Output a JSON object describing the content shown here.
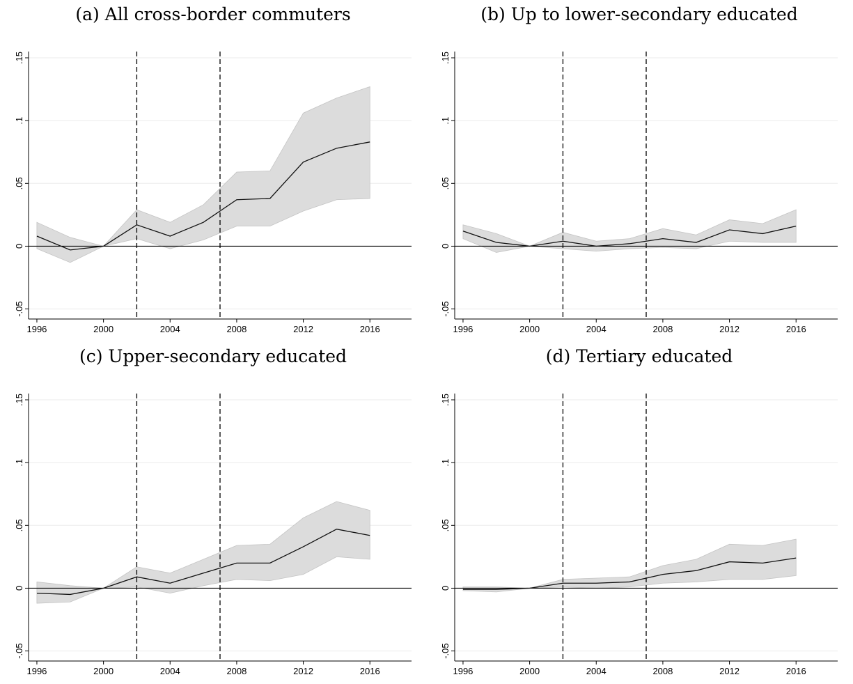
{
  "chart_data": [
    {
      "type": "line",
      "title": "(a) All cross-border commuters",
      "x": [
        1996,
        1998,
        2000,
        2002,
        2004,
        2006,
        2008,
        2010,
        2012,
        2014,
        2016
      ],
      "series": [
        {
          "values": [
            0.008,
            -0.003,
            0.0,
            0.017,
            0.008,
            0.019,
            0.037,
            0.038,
            0.067,
            0.078,
            0.083
          ]
        }
      ],
      "ci_lower": [
        -0.002,
        -0.013,
        0.0,
        0.006,
        -0.002,
        0.005,
        0.016,
        0.016,
        0.028,
        0.037,
        0.038
      ],
      "ci_upper": [
        0.019,
        0.007,
        0.0,
        0.029,
        0.019,
        0.033,
        0.059,
        0.06,
        0.106,
        0.118,
        0.127
      ],
      "vlines": [
        2002,
        2007
      ],
      "xticks": [
        "1996",
        "2000",
        "2004",
        "2008",
        "2012",
        "2016"
      ],
      "yticks": [
        "-.05",
        "0",
        ".05",
        ".1",
        ".15"
      ],
      "xlim": [
        1995.5,
        2018.5
      ],
      "ylim": [
        -0.058,
        0.155
      ],
      "grid": true
    },
    {
      "type": "line",
      "title": "(b) Up to lower-secondary educated",
      "x": [
        1996,
        1998,
        2000,
        2002,
        2004,
        2006,
        2008,
        2010,
        2012,
        2014,
        2016
      ],
      "series": [
        {
          "values": [
            0.012,
            0.003,
            0.0,
            0.004,
            0.0,
            0.002,
            0.006,
            0.003,
            0.013,
            0.01,
            0.016
          ]
        }
      ],
      "ci_lower": [
        0.006,
        -0.005,
        0.0,
        -0.002,
        -0.004,
        -0.002,
        -0.001,
        -0.002,
        0.004,
        0.003,
        0.003
      ],
      "ci_upper": [
        0.017,
        0.01,
        0.0,
        0.011,
        0.004,
        0.006,
        0.014,
        0.009,
        0.021,
        0.018,
        0.029
      ],
      "vlines": [
        2002,
        2007
      ],
      "xticks": [
        "1996",
        "2000",
        "2004",
        "2008",
        "2012",
        "2016"
      ],
      "yticks": [
        "-.05",
        "0",
        ".05",
        ".1",
        ".15"
      ],
      "xlim": [
        1995.5,
        2018.5
      ],
      "ylim": [
        -0.058,
        0.155
      ],
      "grid": true
    },
    {
      "type": "line",
      "title": "(c) Upper-secondary educated",
      "x": [
        1996,
        1998,
        2000,
        2002,
        2004,
        2006,
        2008,
        2010,
        2012,
        2014,
        2016
      ],
      "series": [
        {
          "values": [
            -0.004,
            -0.005,
            0.0,
            0.009,
            0.004,
            0.012,
            0.02,
            0.02,
            0.033,
            0.047,
            0.042
          ]
        }
      ],
      "ci_lower": [
        -0.012,
        -0.011,
        0.0,
        0.001,
        -0.004,
        0.002,
        0.007,
        0.006,
        0.011,
        0.025,
        0.023
      ],
      "ci_upper": [
        0.005,
        0.002,
        0.0,
        0.017,
        0.012,
        0.023,
        0.034,
        0.035,
        0.056,
        0.069,
        0.062
      ],
      "vlines": [
        2002,
        2007
      ],
      "xticks": [
        "1996",
        "2000",
        "2004",
        "2008",
        "2012",
        "2016"
      ],
      "yticks": [
        "-.05",
        "0",
        ".05",
        ".1",
        ".15"
      ],
      "xlim": [
        1995.5,
        2018.5
      ],
      "ylim": [
        -0.058,
        0.155
      ],
      "grid": true
    },
    {
      "type": "line",
      "title": "(d) Tertiary educated",
      "x": [
        1996,
        1998,
        2000,
        2002,
        2004,
        2006,
        2008,
        2010,
        2012,
        2014,
        2016
      ],
      "series": [
        {
          "values": [
            -0.001,
            -0.001,
            0.0,
            0.004,
            0.004,
            0.005,
            0.011,
            0.014,
            0.021,
            0.02,
            0.024
          ]
        }
      ],
      "ci_lower": [
        -0.002,
        -0.003,
        0.0,
        0.001,
        0.0,
        0.001,
        0.004,
        0.005,
        0.007,
        0.007,
        0.01
      ],
      "ci_upper": [
        0.001,
        0.001,
        0.0,
        0.007,
        0.008,
        0.009,
        0.018,
        0.023,
        0.035,
        0.034,
        0.039
      ],
      "vlines": [
        2002,
        2007
      ],
      "xticks": [
        "1996",
        "2000",
        "2004",
        "2008",
        "2012",
        "2016"
      ],
      "yticks": [
        "-.05",
        "0",
        ".05",
        ".1",
        ".15"
      ],
      "xlim": [
        1995.5,
        2018.5
      ],
      "ylim": [
        -0.058,
        0.155
      ],
      "grid": true
    }
  ]
}
